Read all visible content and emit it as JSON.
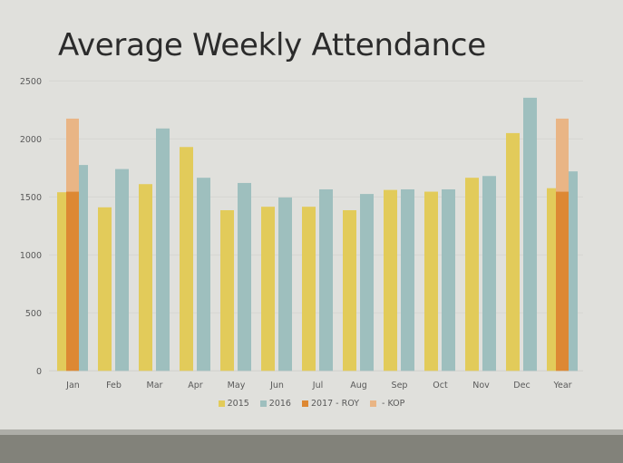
{
  "chart_data": {
    "type": "bar",
    "title": "Average Weekly Attendance",
    "xlabel": "",
    "ylabel": "",
    "ylim": [
      0,
      2500
    ],
    "yticks": [
      0,
      500,
      1000,
      1500,
      2000,
      2500
    ],
    "grid": true,
    "legend_position": "bottom",
    "categories": [
      "Jan",
      "Feb",
      "Mar",
      "Apr",
      "May",
      "Jun",
      "Jul",
      "Aug",
      "Sep",
      "Oct",
      "Nov",
      "Dec",
      "Year"
    ],
    "series": [
      {
        "name": "2015",
        "color": "#e2cb5a",
        "stack": "a",
        "values": [
          1540,
          1410,
          1610,
          1930,
          1385,
          1415,
          1415,
          1385,
          1560,
          1545,
          1665,
          2050,
          1575
        ]
      },
      {
        "name": "2016",
        "color": "#9ebfbe",
        "stack": "b",
        "values": [
          1775,
          1740,
          2090,
          1665,
          1620,
          1495,
          1565,
          1525,
          1565,
          1565,
          1680,
          2355,
          1720
        ]
      },
      {
        "name": "2017 - ROY",
        "color": "#dd8833",
        "stack": "c",
        "values": [
          1545,
          null,
          null,
          null,
          null,
          null,
          null,
          null,
          null,
          null,
          null,
          null,
          1545
        ]
      },
      {
        "name": " - KOP",
        "color": "#e9b585",
        "stack": "c",
        "values": [
          630,
          null,
          null,
          null,
          null,
          null,
          null,
          null,
          null,
          null,
          null,
          null,
          630
        ]
      }
    ]
  }
}
